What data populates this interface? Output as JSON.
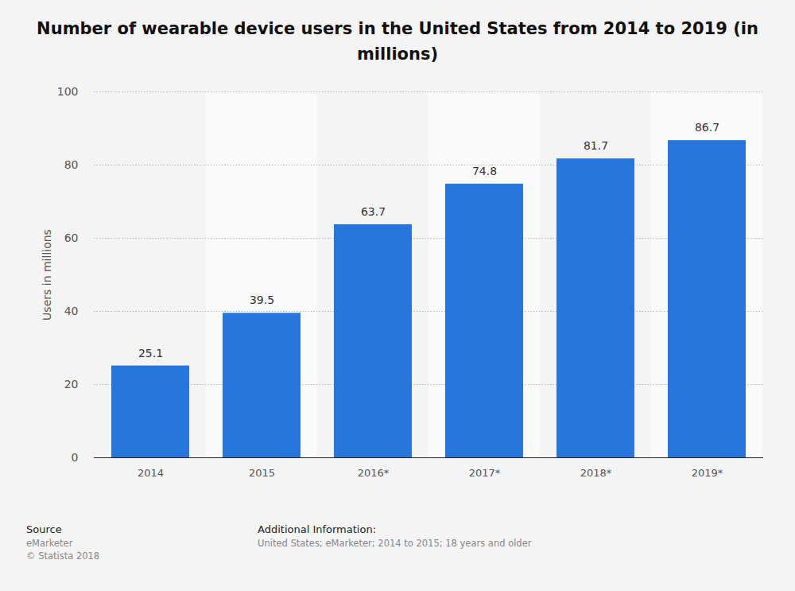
{
  "chart_data": {
    "type": "bar",
    "title": "Number of wearable device users in the United States from 2014 to 2019 (in millions)",
    "y_label": "Users in millions",
    "categories": [
      "2014",
      "2015",
      "2016*",
      "2017*",
      "2018*",
      "2019*"
    ],
    "values": [
      25.1,
      39.5,
      63.7,
      74.8,
      81.7,
      86.7
    ],
    "color": "#2776dc",
    "ylim": [
      0,
      100
    ],
    "yticks": [
      0,
      20,
      40,
      60,
      80,
      100
    ],
    "grid": true,
    "data_labels": true,
    "source_label": "Source",
    "source": [
      "eMarketer",
      "© Statista 2018"
    ],
    "additional_info_label": "Additional Information:",
    "additional_info": "United States; eMarketer; 2014 to 2015; 18 years and older"
  }
}
